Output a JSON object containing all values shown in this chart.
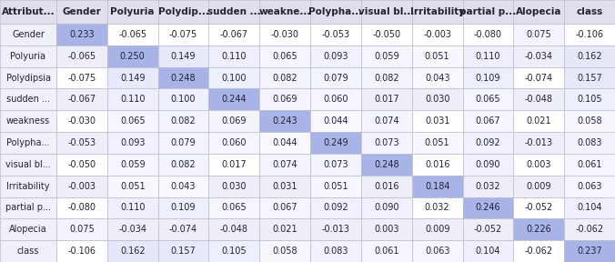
{
  "col_headers": [
    "Attribut...",
    "Gender",
    "Polyuria",
    "Polydip...",
    "sudden ...",
    "weakne...",
    "Polypha...",
    "visual bl...",
    "Irritability",
    "partial p...",
    "Alopecia",
    "class"
  ],
  "row_labels": [
    "Gender",
    "Polyuria",
    "Polydipsia",
    "sudden ...",
    "weakness",
    "Polypha...",
    "visual bl...",
    "Irritability",
    "partial p...",
    "Alopecia",
    "class"
  ],
  "values": [
    [
      0.233,
      -0.065,
      -0.075,
      -0.067,
      -0.03,
      -0.053,
      -0.05,
      -0.003,
      -0.08,
      0.075,
      -0.106
    ],
    [
      -0.065,
      0.25,
      0.149,
      0.11,
      0.065,
      0.093,
      0.059,
      0.051,
      0.11,
      -0.034,
      0.162
    ],
    [
      -0.075,
      0.149,
      0.248,
      0.1,
      0.082,
      0.079,
      0.082,
      0.043,
      0.109,
      -0.074,
      0.157
    ],
    [
      -0.067,
      0.11,
      0.1,
      0.244,
      0.069,
      0.06,
      0.017,
      0.03,
      0.065,
      -0.048,
      0.105
    ],
    [
      -0.03,
      0.065,
      0.082,
      0.069,
      0.243,
      0.044,
      0.074,
      0.031,
      0.067,
      0.021,
      0.058
    ],
    [
      -0.053,
      0.093,
      0.079,
      0.06,
      0.044,
      0.249,
      0.073,
      0.051,
      0.092,
      -0.013,
      0.083
    ],
    [
      -0.05,
      0.059,
      0.082,
      0.017,
      0.074,
      0.073,
      0.248,
      0.016,
      0.09,
      0.003,
      0.061
    ],
    [
      -0.003,
      0.051,
      0.043,
      0.03,
      0.031,
      0.051,
      0.016,
      0.184,
      0.032,
      0.009,
      0.063
    ],
    [
      -0.08,
      0.11,
      0.109,
      0.065,
      0.067,
      0.092,
      0.09,
      0.032,
      0.246,
      -0.052,
      0.104
    ],
    [
      0.075,
      -0.034,
      -0.074,
      -0.048,
      0.021,
      -0.013,
      0.003,
      0.009,
      -0.052,
      0.226,
      -0.062
    ],
    [
      -0.106,
      0.162,
      0.157,
      0.105,
      0.058,
      0.083,
      0.061,
      0.063,
      0.104,
      -0.062,
      0.237
    ]
  ],
  "header_bg": "#e0e0ec",
  "row_label_bg": "#f0f0f8",
  "cell_bg_default": "#ffffff",
  "diag_color": "#a8b4e8",
  "off_diag_tint": "#d8dcf4",
  "alt_row_bg": "#eeeef8",
  "text_color": "#222233",
  "edge_color": "#bbbbcc",
  "font_size": 7.0,
  "header_font_size": 7.5
}
